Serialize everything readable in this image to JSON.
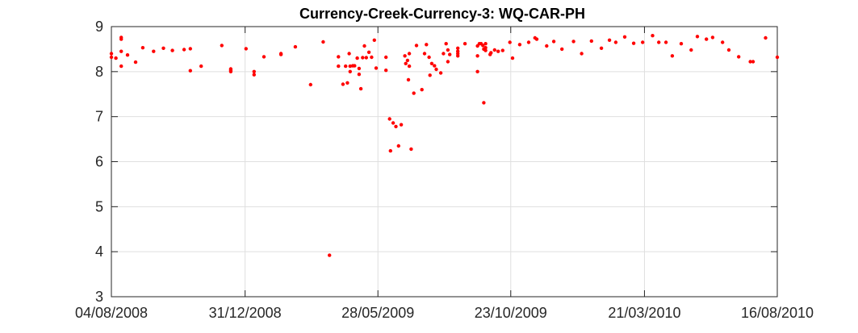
{
  "chart_data": {
    "type": "scatter",
    "title": "Currency-Creek-Currency-3: WQ-CAR-PH",
    "xlabel": "",
    "ylabel": "",
    "xlim": [
      "2008-08-04",
      "2010-08-16"
    ],
    "ylim": [
      3,
      9
    ],
    "x_ticks": [
      "04/08/2008",
      "31/12/2008",
      "28/05/2009",
      "23/10/2009",
      "21/03/2010",
      "16/08/2010"
    ],
    "y_ticks": [
      "3",
      "4",
      "5",
      "6",
      "7",
      "8",
      "9"
    ],
    "grid": true,
    "marker_color": "#ff0000",
    "series": [
      {
        "points": [
          [
            "2008-08-04",
            8.4
          ],
          [
            "2008-08-04",
            8.32
          ],
          [
            "2008-08-09",
            8.3
          ],
          [
            "2008-08-15",
            8.76
          ],
          [
            "2008-08-15",
            8.72
          ],
          [
            "2008-08-15",
            8.45
          ],
          [
            "2008-08-15",
            8.12
          ],
          [
            "2008-08-22",
            8.37
          ],
          [
            "2008-08-31",
            8.21
          ],
          [
            "2008-09-08",
            8.53
          ],
          [
            "2008-09-20",
            8.45
          ],
          [
            "2008-10-01",
            8.52
          ],
          [
            "2008-10-11",
            8.47
          ],
          [
            "2008-10-24",
            8.49
          ],
          [
            "2008-10-31",
            8.51
          ],
          [
            "2008-10-31",
            8.02
          ],
          [
            "2008-11-12",
            8.12
          ],
          [
            "2008-12-05",
            8.58
          ],
          [
            "2008-12-15",
            8.06
          ],
          [
            "2008-12-15",
            8.03
          ],
          [
            "2008-12-15",
            8.0
          ],
          [
            "2009-01-01",
            8.51
          ],
          [
            "2009-01-10",
            8.0
          ],
          [
            "2009-01-10",
            7.93
          ],
          [
            "2009-01-21",
            8.33
          ],
          [
            "2009-02-09",
            8.4
          ],
          [
            "2009-02-09",
            8.38
          ],
          [
            "2009-02-25",
            8.55
          ],
          [
            "2009-03-14",
            7.71
          ],
          [
            "2009-03-28",
            8.66
          ],
          [
            "2009-04-04",
            3.92
          ],
          [
            "2009-04-14",
            8.12
          ],
          [
            "2009-04-14",
            8.33
          ],
          [
            "2009-04-19",
            7.72
          ],
          [
            "2009-04-22",
            8.12
          ],
          [
            "2009-04-24",
            7.75
          ],
          [
            "2009-04-26",
            8.4
          ],
          [
            "2009-04-27",
            8.12
          ],
          [
            "2009-04-27",
            8.0
          ],
          [
            "2009-04-30",
            8.13
          ],
          [
            "2009-05-02",
            8.13
          ],
          [
            "2009-05-05",
            8.3
          ],
          [
            "2009-05-07",
            8.07
          ],
          [
            "2009-05-07",
            7.94
          ],
          [
            "2009-05-09",
            7.62
          ],
          [
            "2009-05-11",
            8.31
          ],
          [
            "2009-05-13",
            8.57
          ],
          [
            "2009-05-15",
            8.31
          ],
          [
            "2009-05-18",
            8.43
          ],
          [
            "2009-05-21",
            8.32
          ],
          [
            "2009-05-24",
            8.7
          ],
          [
            "2009-05-26",
            8.08
          ],
          [
            "2009-06-06",
            8.32
          ],
          [
            "2009-06-06",
            8.03
          ],
          [
            "2009-06-10",
            6.95
          ],
          [
            "2009-06-11",
            6.24
          ],
          [
            "2009-06-14",
            6.86
          ],
          [
            "2009-06-17",
            6.78
          ],
          [
            "2009-06-20",
            6.35
          ],
          [
            "2009-06-23",
            6.82
          ],
          [
            "2009-06-27",
            8.35
          ],
          [
            "2009-06-28",
            8.18
          ],
          [
            "2009-06-30",
            8.25
          ],
          [
            "2009-07-01",
            7.82
          ],
          [
            "2009-07-02",
            8.12
          ],
          [
            "2009-07-02",
            8.4
          ],
          [
            "2009-07-04",
            6.28
          ],
          [
            "2009-07-07",
            7.52
          ],
          [
            "2009-07-10",
            8.58
          ],
          [
            "2009-07-16",
            7.6
          ],
          [
            "2009-07-19",
            8.4
          ],
          [
            "2009-07-21",
            8.6
          ],
          [
            "2009-07-24",
            8.32
          ],
          [
            "2009-07-25",
            7.92
          ],
          [
            "2009-07-27",
            8.18
          ],
          [
            "2009-07-30",
            8.13
          ],
          [
            "2009-08-01",
            8.05
          ],
          [
            "2009-08-06",
            7.97
          ],
          [
            "2009-08-09",
            8.4
          ],
          [
            "2009-08-12",
            8.62
          ],
          [
            "2009-08-14",
            8.48
          ],
          [
            "2009-08-14",
            8.22
          ],
          [
            "2009-08-16",
            8.38
          ],
          [
            "2009-08-25",
            8.52
          ],
          [
            "2009-08-25",
            8.45
          ],
          [
            "2009-08-25",
            8.4
          ],
          [
            "2009-08-25",
            8.35
          ],
          [
            "2009-09-02",
            8.62
          ],
          [
            "2009-09-16",
            8.57
          ],
          [
            "2009-09-16",
            8.35
          ],
          [
            "2009-09-16",
            8.0
          ],
          [
            "2009-09-18",
            8.62
          ],
          [
            "2009-09-20",
            8.62
          ],
          [
            "2009-09-22",
            8.58
          ],
          [
            "2009-09-23",
            8.5
          ],
          [
            "2009-09-23",
            7.31
          ],
          [
            "2009-09-25",
            8.62
          ],
          [
            "2009-09-25",
            8.53
          ],
          [
            "2009-09-25",
            8.47
          ],
          [
            "2009-09-30",
            8.38
          ],
          [
            "2009-10-01",
            8.42
          ],
          [
            "2009-10-05",
            8.48
          ],
          [
            "2009-10-09",
            8.45
          ],
          [
            "2009-10-14",
            8.47
          ],
          [
            "2009-10-22",
            8.65
          ],
          [
            "2009-10-25",
            8.3
          ],
          [
            "2009-11-02",
            8.6
          ],
          [
            "2009-11-12",
            8.65
          ],
          [
            "2009-11-19",
            8.75
          ],
          [
            "2009-11-21",
            8.72
          ],
          [
            "2009-12-02",
            8.57
          ],
          [
            "2009-12-10",
            8.67
          ],
          [
            "2009-12-19",
            8.5
          ],
          [
            "2010-01-01",
            8.67
          ],
          [
            "2010-01-10",
            8.4
          ],
          [
            "2010-01-21",
            8.68
          ],
          [
            "2010-02-01",
            8.52
          ],
          [
            "2010-02-10",
            8.7
          ],
          [
            "2010-02-17",
            8.65
          ],
          [
            "2010-02-27",
            8.77
          ],
          [
            "2010-03-09",
            8.63
          ],
          [
            "2010-03-19",
            8.65
          ],
          [
            "2010-03-30",
            8.8
          ],
          [
            "2010-04-06",
            8.65
          ],
          [
            "2010-04-14",
            8.65
          ],
          [
            "2010-04-21",
            8.35
          ],
          [
            "2010-05-01",
            8.62
          ],
          [
            "2010-05-12",
            8.48
          ],
          [
            "2010-05-19",
            8.78
          ],
          [
            "2010-05-29",
            8.72
          ],
          [
            "2010-06-05",
            8.76
          ],
          [
            "2010-06-16",
            8.65
          ],
          [
            "2010-06-23",
            8.48
          ],
          [
            "2010-07-04",
            8.33
          ],
          [
            "2010-07-17",
            8.22
          ],
          [
            "2010-07-20",
            8.22
          ],
          [
            "2010-08-03",
            8.75
          ],
          [
            "2010-08-16",
            8.32
          ]
        ]
      }
    ]
  }
}
